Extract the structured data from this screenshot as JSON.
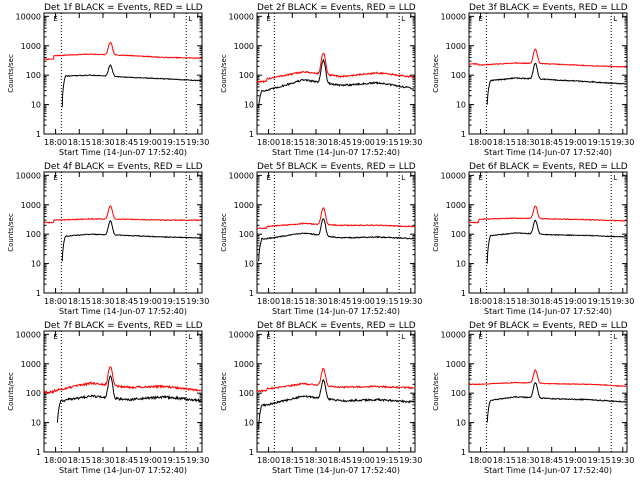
{
  "figure": {
    "colors": {
      "events": "#000000",
      "lld": "#ff0000",
      "axis": "#000000"
    }
  },
  "chart_data": [
    {
      "type": "line",
      "detector": "Det 1f",
      "title": "Det 1f BLACK = Events, RED = LLD",
      "xlabel": "Start Time (14-Jun-07 17:52:40)",
      "ylabel": "Counts/sec",
      "x_tick_labels": [
        "18:00",
        "18:15",
        "18:30",
        "18:45",
        "19:00",
        "19:15",
        "19:30"
      ],
      "x_tick_minutes": [
        7.33,
        22.33,
        37.33,
        52.33,
        67.33,
        82.33,
        97.33
      ],
      "xlim": [
        0,
        100
      ],
      "ylim": [
        1,
        13000
      ],
      "yscale": "log",
      "y_tick_labels": [
        "1",
        "10",
        "100",
        "1000",
        "10000"
      ],
      "vlines_minutes": [
        11,
        90
      ],
      "flag_marks": [
        "E",
        "L"
      ],
      "series": [
        {
          "name": "LLD",
          "color": "red",
          "start": 0,
          "pre": 350,
          "base": [
            460,
            520,
            470,
            400,
            380
          ],
          "peak": 1300,
          "noise": 0.03
        },
        {
          "name": "Events",
          "color": "black",
          "start": 11.5,
          "pre": 0,
          "base": [
            90,
            100,
            85,
            75,
            65
          ],
          "peak": 220,
          "noise": 0.03,
          "rise_from": 8
        }
      ]
    },
    {
      "type": "line",
      "detector": "Det 2f",
      "title": "Det 2f BLACK = Events, RED = LLD",
      "xlabel": "Start Time (14-Jun-07 17:52:40)",
      "ylabel": "Counts/sec",
      "x_tick_labels": [
        "18:00",
        "18:15",
        "18:30",
        "18:45",
        "19:00",
        "19:15",
        "19:30"
      ],
      "x_tick_minutes": [
        7.33,
        22.33,
        37.33,
        52.33,
        67.33,
        82.33,
        97.33
      ],
      "xlim": [
        0,
        100
      ],
      "ylim": [
        1,
        13000
      ],
      "yscale": "log",
      "y_tick_labels": [
        "1",
        "10",
        "100",
        "1000",
        "10000"
      ],
      "vlines_minutes": [
        11,
        90
      ],
      "flag_marks": [
        "E",
        "L"
      ],
      "series": [
        {
          "name": "LLD",
          "color": "red",
          "start": 0,
          "pre": 60,
          "base": [
            75,
            130,
            90,
            120,
            85
          ],
          "peak": 560,
          "noise": 0.06
        },
        {
          "name": "Events",
          "color": "black",
          "start": 1,
          "pre": 0,
          "base": [
            30,
            70,
            45,
            55,
            35
          ],
          "peak": 320,
          "noise": 0.07,
          "rise_from": 8
        }
      ]
    },
    {
      "type": "line",
      "detector": "Det 3f",
      "title": "Det 3f BLACK = Events, RED = LLD",
      "xlabel": "Start Time (14-Jun-07 17:52:40)",
      "ylabel": "Counts/sec",
      "x_tick_labels": [
        "18:00",
        "18:15",
        "18:30",
        "18:45",
        "19:00",
        "19:15",
        "19:30"
      ],
      "x_tick_minutes": [
        7.33,
        22.33,
        37.33,
        52.33,
        67.33,
        82.33,
        97.33
      ],
      "xlim": [
        0,
        100
      ],
      "ylim": [
        1,
        13000
      ],
      "yscale": "log",
      "y_tick_labels": [
        "1",
        "10",
        "100",
        "1000",
        "10000"
      ],
      "vlines_minutes": [
        11,
        90
      ],
      "flag_marks": [
        "E",
        "L"
      ],
      "series": [
        {
          "name": "LLD",
          "color": "red",
          "start": 0,
          "pre": 240,
          "base": [
            220,
            260,
            240,
            210,
            190
          ],
          "peak": 750,
          "noise": 0.03
        },
        {
          "name": "Events",
          "color": "black",
          "start": 11.5,
          "pre": 0,
          "base": [
            60,
            80,
            70,
            60,
            50
          ],
          "peak": 250,
          "noise": 0.04,
          "rise_from": 10
        }
      ]
    },
    {
      "type": "line",
      "detector": "Det 4f",
      "title": "Det 4f BLACK = Events, RED = LLD",
      "xlabel": "Start Time (14-Jun-07 17:52:40)",
      "ylabel": "Counts/sec",
      "x_tick_labels": [
        "18:00",
        "18:15",
        "18:30",
        "18:45",
        "19:00",
        "19:15",
        "19:30"
      ],
      "x_tick_minutes": [
        7.33,
        22.33,
        37.33,
        52.33,
        67.33,
        82.33,
        97.33
      ],
      "xlim": [
        0,
        100
      ],
      "ylim": [
        1,
        13000
      ],
      "yscale": "log",
      "y_tick_labels": [
        "1",
        "10",
        "100",
        "1000",
        "10000"
      ],
      "vlines_minutes": [
        11,
        90
      ],
      "flag_marks": [
        "E",
        "L"
      ],
      "series": [
        {
          "name": "LLD",
          "color": "red",
          "start": 0,
          "pre": 250,
          "base": [
            300,
            330,
            320,
            300,
            300
          ],
          "peak": 900,
          "noise": 0.03
        },
        {
          "name": "Events",
          "color": "black",
          "start": 11.5,
          "pre": 0,
          "base": [
            80,
            100,
            90,
            80,
            75
          ],
          "peak": 280,
          "noise": 0.03,
          "rise_from": 12
        }
      ]
    },
    {
      "type": "line",
      "detector": "Det 5f",
      "title": "Det 5f BLACK = Events, RED = LLD",
      "xlabel": "Start Time (14-Jun-07 17:52:40)",
      "ylabel": "Counts/sec",
      "x_tick_labels": [
        "18:00",
        "18:15",
        "18:30",
        "18:45",
        "19:00",
        "19:15",
        "19:30"
      ],
      "x_tick_minutes": [
        7.33,
        22.33,
        37.33,
        52.33,
        67.33,
        82.33,
        97.33
      ],
      "xlim": [
        0,
        100
      ],
      "ylim": [
        1,
        13000
      ],
      "yscale": "log",
      "y_tick_labels": [
        "1",
        "10",
        "100",
        "1000",
        "10000"
      ],
      "vlines_minutes": [
        11,
        90
      ],
      "flag_marks": [
        "E",
        "L"
      ],
      "series": [
        {
          "name": "LLD",
          "color": "red",
          "start": 0,
          "pre": 160,
          "base": [
            180,
            230,
            200,
            200,
            180
          ],
          "peak": 780,
          "noise": 0.04
        },
        {
          "name": "Events",
          "color": "black",
          "start": 1,
          "pre": 0,
          "base": [
            70,
            110,
            75,
            80,
            70
          ],
          "peak": 340,
          "noise": 0.04,
          "rise_from": 12
        }
      ]
    },
    {
      "type": "line",
      "detector": "Det 6f",
      "title": "Det 6f BLACK = Events, RED = LLD",
      "xlabel": "Start Time (14-Jun-07 17:52:40)",
      "ylabel": "Counts/sec",
      "x_tick_labels": [
        "18:00",
        "18:15",
        "18:30",
        "18:45",
        "19:00",
        "19:15",
        "19:30"
      ],
      "x_tick_minutes": [
        7.33,
        22.33,
        37.33,
        52.33,
        67.33,
        82.33,
        97.33
      ],
      "xlim": [
        0,
        100
      ],
      "ylim": [
        1,
        13000
      ],
      "yscale": "log",
      "y_tick_labels": [
        "1",
        "10",
        "100",
        "1000",
        "10000"
      ],
      "vlines_minutes": [
        11,
        90
      ],
      "flag_marks": [
        "E",
        "L"
      ],
      "series": [
        {
          "name": "LLD",
          "color": "red",
          "start": 0,
          "pre": 250,
          "base": [
            320,
            350,
            330,
            310,
            280
          ],
          "peak": 900,
          "noise": 0.03
        },
        {
          "name": "Events",
          "color": "black",
          "start": 11.5,
          "pre": 0,
          "base": [
            80,
            110,
            95,
            90,
            80
          ],
          "peak": 290,
          "noise": 0.03,
          "rise_from": 10
        }
      ]
    },
    {
      "type": "line",
      "detector": "Det 7f",
      "title": "Det 7f BLACK = Events, RED = LLD",
      "xlabel": "Start Time (14-Jun-07 17:52:40)",
      "ylabel": "Counts/sec",
      "x_tick_labels": [
        "18:00",
        "18:15",
        "18:30",
        "18:45",
        "19:00",
        "19:15",
        "19:30"
      ],
      "x_tick_minutes": [
        7.33,
        22.33,
        37.33,
        52.33,
        67.33,
        82.33,
        97.33
      ],
      "xlim": [
        0,
        100
      ],
      "ylim": [
        1,
        13000
      ],
      "yscale": "log",
      "y_tick_labels": [
        "1",
        "10",
        "100",
        "1000",
        "10000"
      ],
      "vlines_minutes": [
        11,
        90
      ],
      "flag_marks": [
        "E",
        "L"
      ],
      "series": [
        {
          "name": "LLD",
          "color": "red",
          "start": 0,
          "pre": 110,
          "base": [
            120,
            220,
            160,
            170,
            120
          ],
          "peak": 800,
          "noise": 0.08
        },
        {
          "name": "Events",
          "color": "black",
          "start": 8.5,
          "pre": 0,
          "base": [
            50,
            80,
            60,
            75,
            55
          ],
          "peak": 360,
          "noise": 0.09,
          "rise_from": 10
        }
      ]
    },
    {
      "type": "line",
      "detector": "Det 8f",
      "title": "Det 8f BLACK = Events, RED = LLD",
      "xlabel": "Start Time (14-Jun-07 17:52:40)",
      "ylabel": "Counts/sec",
      "x_tick_labels": [
        "18:00",
        "18:15",
        "18:30",
        "18:45",
        "19:00",
        "19:15",
        "19:30"
      ],
      "x_tick_minutes": [
        7.33,
        22.33,
        37.33,
        52.33,
        67.33,
        82.33,
        97.33
      ],
      "xlim": [
        0,
        100
      ],
      "ylim": [
        1,
        13000
      ],
      "yscale": "log",
      "y_tick_labels": [
        "1",
        "10",
        "100",
        "1000",
        "10000"
      ],
      "vlines_minutes": [
        11,
        90
      ],
      "flag_marks": [
        "E",
        "L"
      ],
      "series": [
        {
          "name": "LLD",
          "color": "red",
          "start": 0,
          "pre": 120,
          "base": [
            140,
            210,
            160,
            170,
            150
          ],
          "peak": 700,
          "noise": 0.06
        },
        {
          "name": "Events",
          "color": "black",
          "start": 1,
          "pre": 0,
          "base": [
            40,
            80,
            55,
            60,
            50
          ],
          "peak": 280,
          "noise": 0.07,
          "rise_from": 6
        }
      ]
    },
    {
      "type": "line",
      "detector": "Det 9f",
      "title": "Det 9f BLACK = Events, RED = LLD",
      "xlabel": "Start Time (14-Jun-07 17:52:40)",
      "ylabel": "Counts/sec",
      "x_tick_labels": [
        "18:00",
        "18:15",
        "18:30",
        "18:45",
        "19:00",
        "19:15",
        "19:30"
      ],
      "x_tick_minutes": [
        7.33,
        22.33,
        37.33,
        52.33,
        67.33,
        82.33,
        97.33
      ],
      "xlim": [
        0,
        100
      ],
      "ylim": [
        1,
        13000
      ],
      "yscale": "log",
      "y_tick_labels": [
        "1",
        "10",
        "100",
        "1000",
        "10000"
      ],
      "vlines_minutes": [
        11,
        90
      ],
      "flag_marks": [
        "E",
        "L"
      ],
      "series": [
        {
          "name": "LLD",
          "color": "red",
          "start": 0,
          "pre": 200,
          "base": [
            200,
            230,
            210,
            200,
            170
          ],
          "peak": 600,
          "noise": 0.03
        },
        {
          "name": "Events",
          "color": "black",
          "start": 11.5,
          "pre": 0,
          "base": [
            50,
            75,
            65,
            60,
            50
          ],
          "peak": 230,
          "noise": 0.04,
          "rise_from": 10
        }
      ]
    }
  ]
}
